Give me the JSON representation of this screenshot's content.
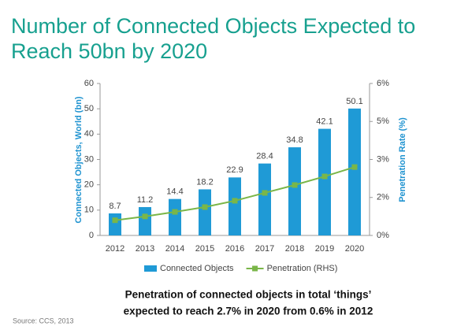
{
  "chart_data": {
    "type": "bar",
    "title": [
      "Number of Connected Objects Expected to",
      "Reach 50bn by 2020"
    ],
    "y_label": "Connected Objects, World (bn)",
    "y2_label": "Penetration Rate (%)",
    "note": [
      "Penetration of connected objects in total ‘things’",
      "expected to reach 2.7% in 2020 from 0.6% in 2012"
    ],
    "source": "Source: CCS, 2013",
    "categories": [
      "2012",
      "2013",
      "2014",
      "2015",
      "2016",
      "2017",
      "2018",
      "2019",
      "2020"
    ],
    "series": [
      {
        "name": "Connected Objects",
        "type": "bar",
        "color": "#1f9ad6",
        "values": [
          8.7,
          11.2,
          14.4,
          18.2,
          22.9,
          28.4,
          34.8,
          42.1,
          50.1
        ]
      },
      {
        "name": "Penetration (RHS)",
        "type": "line",
        "axis": "y2",
        "color": "#7ab648",
        "values": [
          0.6,
          0.75,
          0.93,
          1.12,
          1.37,
          1.68,
          1.99,
          2.33,
          2.7
        ]
      }
    ],
    "ylim": [
      0,
      60
    ],
    "yticks": [
      0,
      10,
      20,
      30,
      40,
      50,
      60
    ],
    "y2lim": [
      0,
      6
    ],
    "y2ticks": [
      {
        "value": 0,
        "label": "0%"
      },
      {
        "value": 1.5,
        "label": "2%"
      },
      {
        "value": 3,
        "label": "3%"
      },
      {
        "value": 4.5,
        "label": "5%"
      },
      {
        "value": 6,
        "label": "6%"
      }
    ],
    "legend": "bottom"
  }
}
